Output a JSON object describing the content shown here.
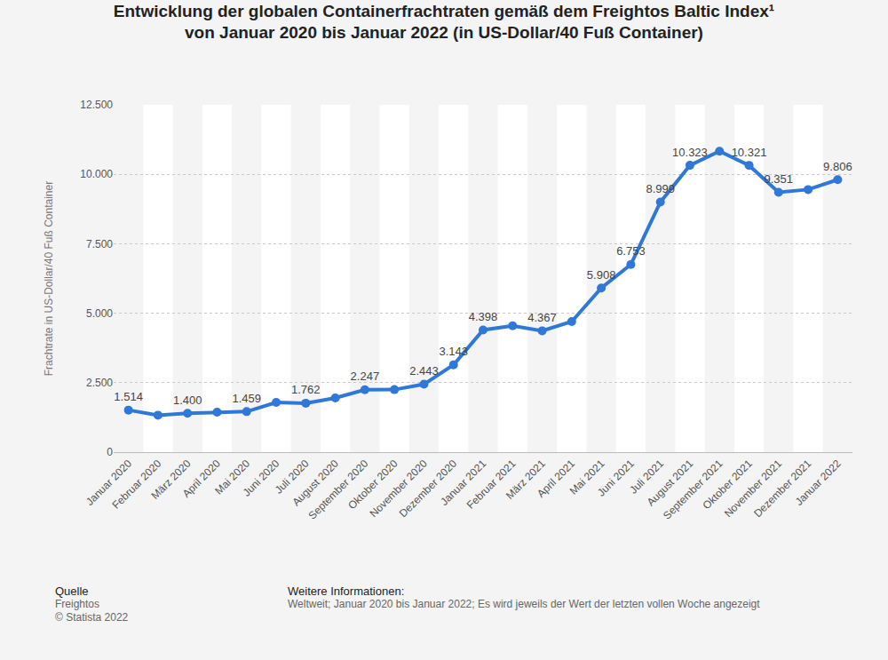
{
  "chart_data": {
    "type": "line",
    "title": "Entwicklung der globalen Containerfrachtraten gemäß dem Freightos Baltic Index¹\nvon Januar 2020 bis Januar 2022 (in US-Dollar/40 Fuß Container)",
    "y_label": "Frachtrate in US-Dollar/40 Fuß Container",
    "categories": [
      "Januar 2020",
      "Februar 2020",
      "März 2020",
      "April 2020",
      "Mai 2020",
      "Juni 2020",
      "Juli 2020",
      "August 2020",
      "September 2020",
      "Oktober 2020",
      "November 2020",
      "Dezember 2020",
      "Januar 2021",
      "Februar 2021",
      "März 2021",
      "April 2021",
      "Mai 2021",
      "Juni 2021",
      "Juli 2021",
      "August 2021",
      "September 2021",
      "Oktober 2021",
      "November 2021",
      "Dezember 2021",
      "Januar 2022"
    ],
    "values": [
      1514,
      1330,
      1400,
      1440,
      1459,
      1790,
      1762,
      1950,
      2247,
      2250,
      2443,
      3143,
      4398,
      4550,
      4367,
      4700,
      5908,
      6753,
      8999,
      10323,
      10830,
      10321,
      9351,
      9450,
      9806
    ],
    "value_labels": [
      "1.514",
      null,
      "1.400",
      null,
      "1.459",
      null,
      "1.762",
      null,
      "2.247",
      null,
      "2.443",
      "3.143",
      "4.398",
      null,
      "4.367",
      null,
      "5.908",
      "6.753",
      "8.999",
      "10.323",
      null,
      "10.321",
      "9.351",
      null,
      "9.806"
    ],
    "data_labels": true,
    "color": "#2f77d8",
    "marker": "circle",
    "line_style": "solid",
    "ylim": [
      0,
      12500
    ],
    "yticks": [
      0,
      {
        "value": 2500,
        "label": "2.500"
      },
      {
        "value": 5000,
        "label": "5.000"
      },
      {
        "value": 7500,
        "label": "7.500"
      },
      {
        "value": 10000,
        "label": "10.000"
      },
      {
        "value": 12500,
        "label": "12.500"
      }
    ],
    "grid": true,
    "source": {
      "heading": "Quelle",
      "lines": [
        "Freightos",
        "© Statista 2022"
      ]
    },
    "info": {
      "heading": "Weitere Informationen:",
      "text": "Weltweit; Januar 2020 bis Januar 2022; Es wird jeweils der Wert der letzten vollen Woche angezeigt"
    }
  }
}
